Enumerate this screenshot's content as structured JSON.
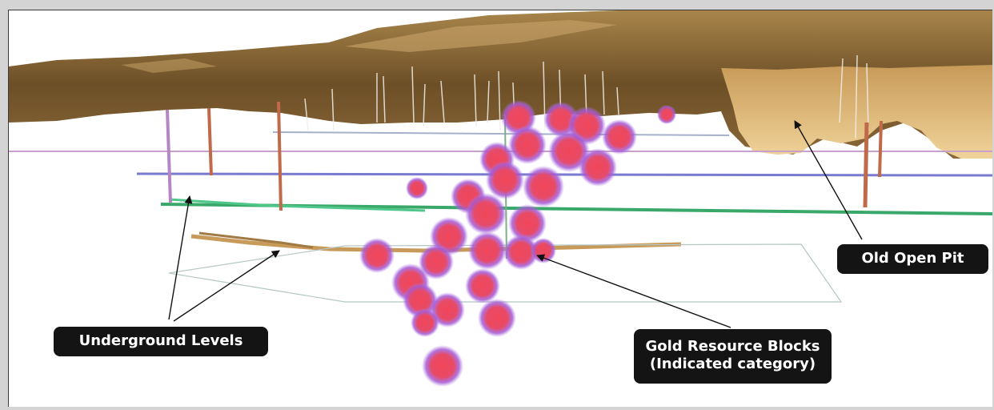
{
  "labels": {
    "underground_levels": "Underground Levels",
    "gold_resource_line1": "Gold Resource Blocks",
    "gold_resource_line2": "(Indicated category)",
    "old_open_pit": "Old Open Pit"
  },
  "colors": {
    "background": "#d4d4d4",
    "callout_fill": "#141414",
    "callout_text": "#ffffff",
    "terrain": "#7d5c2e",
    "open_pit": "#d9b070",
    "resource_blocks": "#e94a5a",
    "resource_halo": "#9b63d8",
    "level_green": "#3aa86a",
    "level_tan": "#c89a5a"
  }
}
